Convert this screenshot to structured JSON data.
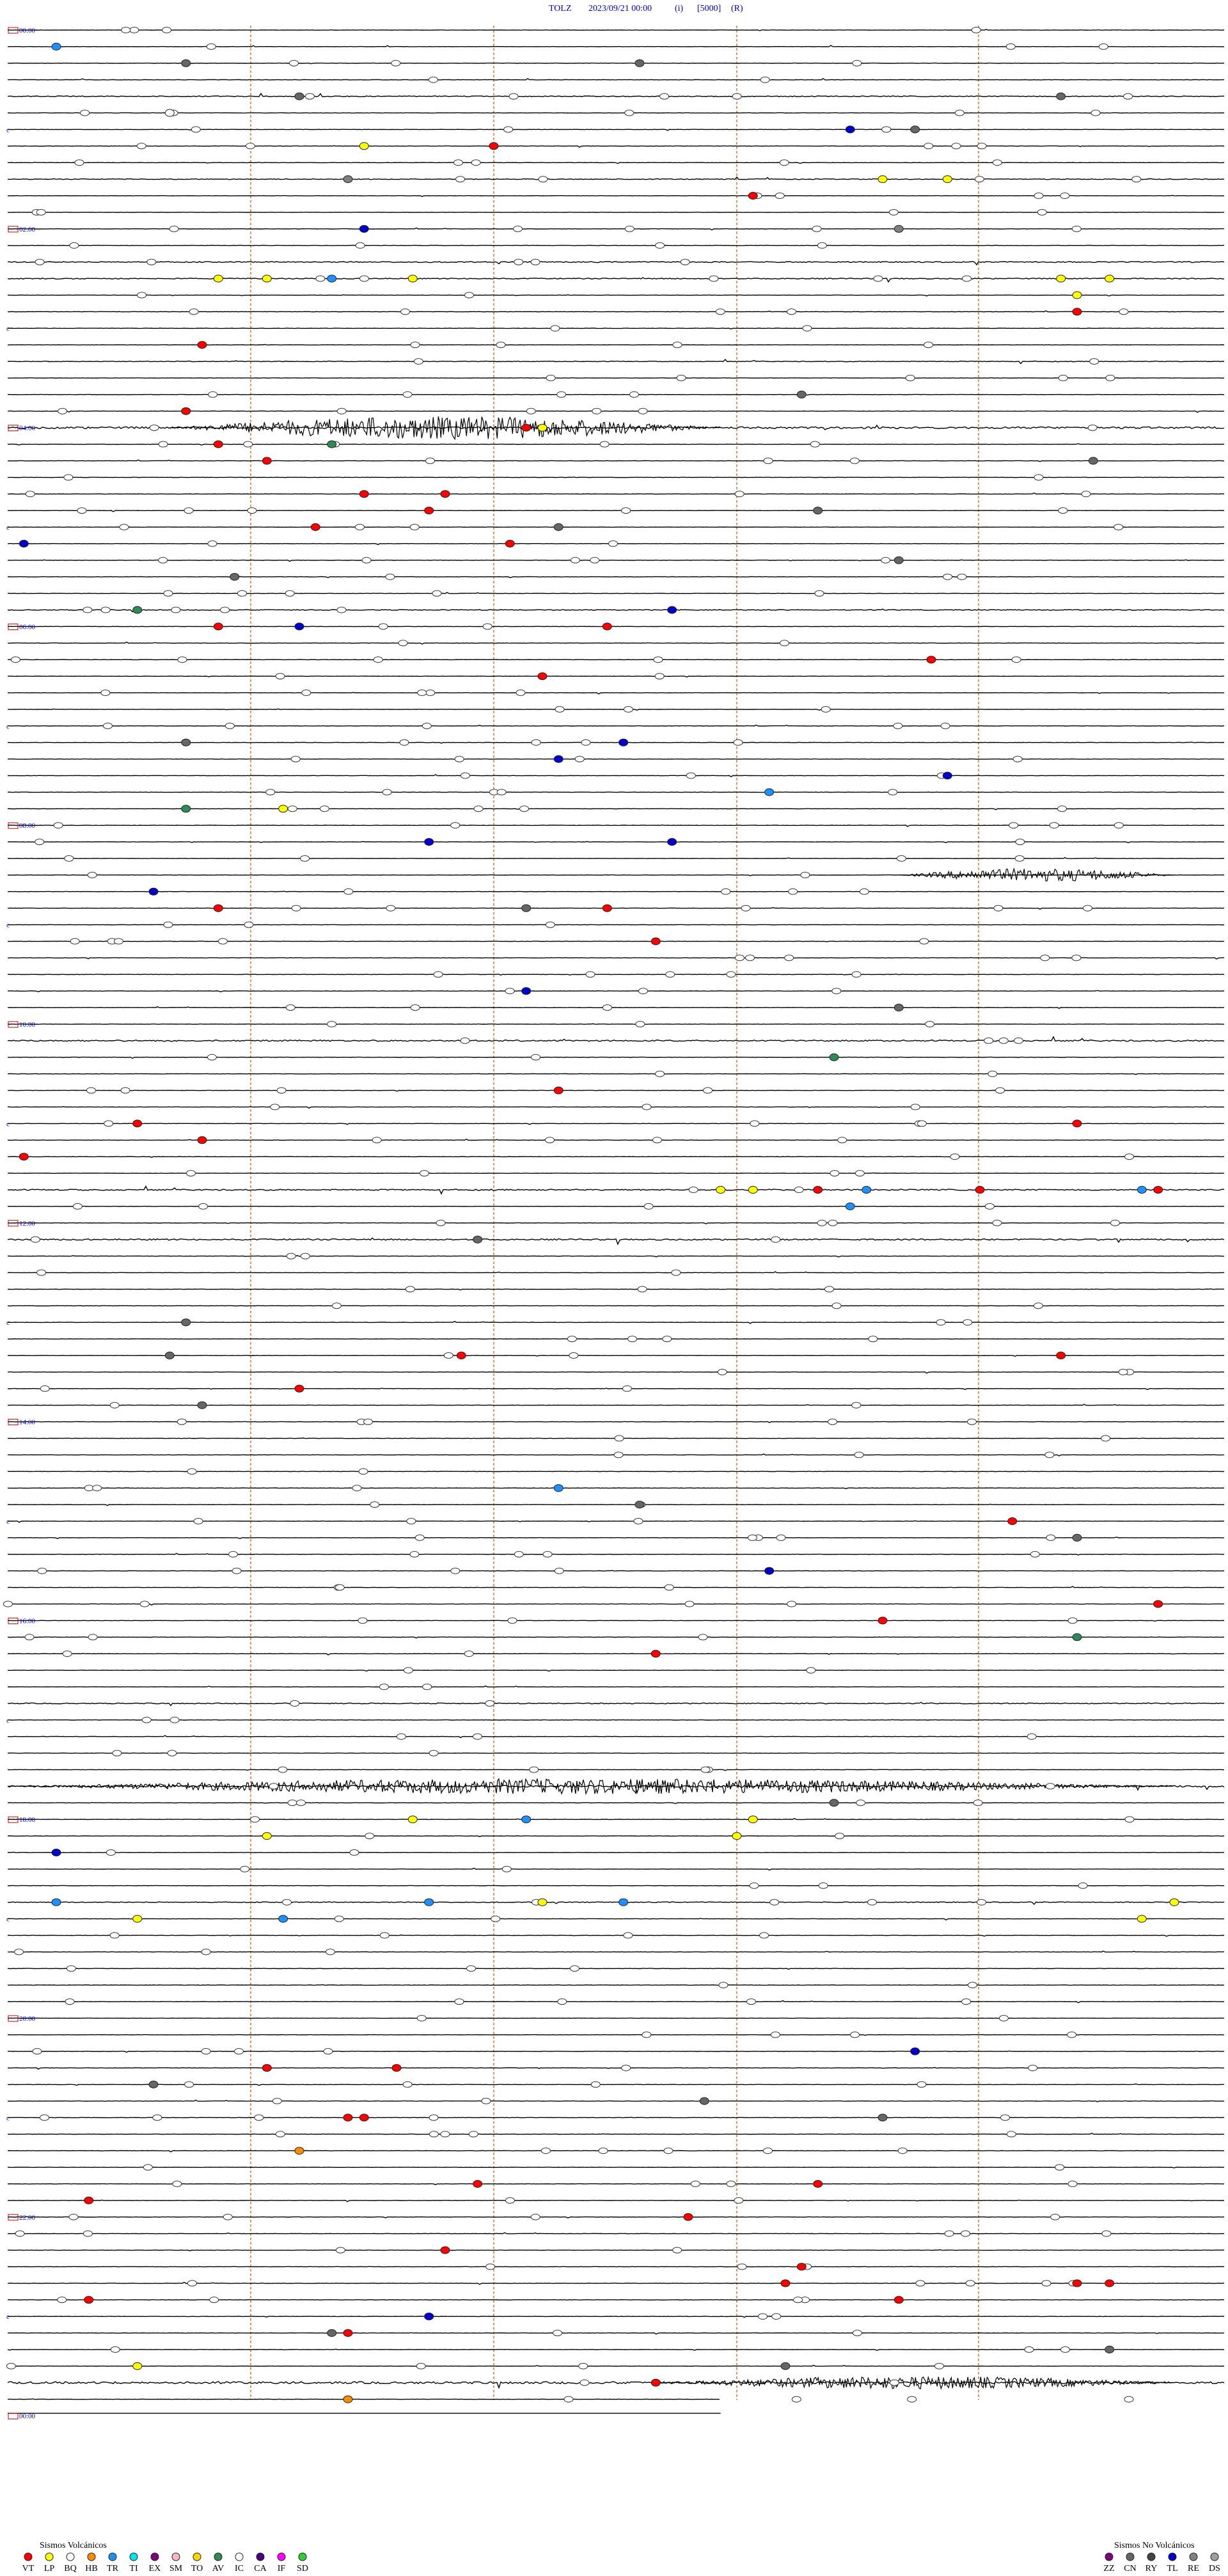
{
  "header": {
    "station": "TOLZ",
    "datetime": "2023/09/21 00:00",
    "field_i": "(i)",
    "scale": "[5000]",
    "field_r": "(R)"
  },
  "colors": {
    "trace": "#000000",
    "hour_label": "#0000cc",
    "minute_grid": "#e8793a",
    "VT": "#ff0000",
    "LP": "#ffff00",
    "BQ": "#ffffff",
    "HB": "#ff8c00",
    "TR": "#1e90ff",
    "TI": "#00e5ee",
    "EX": "#800080",
    "SM": "#ffb6c1",
    "TO": "#ffd700",
    "AV": "#2e8b57",
    "IC": "#ffffff",
    "CA": "#4b0082",
    "IF": "#ff00ff",
    "SD": "#32cd32",
    "ZZ": "#800080",
    "CN": "#666666",
    "RY": "#444444",
    "TL": "#0000cd",
    "RE": "#808080",
    "DS": "#a0a0a0"
  },
  "chart_data": {
    "type": "helicorder",
    "hours": [
      "00:00",
      "02:00",
      "04:00",
      "06:00",
      "08:00",
      "10:00",
      "12:00",
      "14:00",
      "16:00",
      "18:00",
      "20:00",
      "22:00",
      "00:00"
    ],
    "minute_marks": [
      15,
      30,
      45,
      60
    ],
    "grid": true,
    "legend_volcanic_title": "Sismos Volcánicos",
    "legend_volcanic_codes": [
      "VT",
      "LP",
      "BQ",
      "HB",
      "TR",
      "TI",
      "EX",
      "SM",
      "TO",
      "AV",
      "IC",
      "CA",
      "IF",
      "SD"
    ],
    "legend_nonvolcanic_title": "Sismos No Volcánicos",
    "legend_nonvolcanic_codes": [
      "ZZ",
      "CN",
      "RY",
      "TL",
      "RE",
      "DS"
    ],
    "events": [
      {
        "row": 1,
        "min": 3,
        "type": "TR"
      },
      {
        "row": 2,
        "min": 11,
        "type": "CN"
      },
      {
        "row": 2,
        "min": 39,
        "type": "CN"
      },
      {
        "row": 4,
        "min": 18,
        "type": "CN"
      },
      {
        "row": 4,
        "min": 65,
        "type": "CN"
      },
      {
        "row": 5,
        "min": 10,
        "type": "BQ"
      },
      {
        "row": 6,
        "min": 52,
        "type": "TL"
      },
      {
        "row": 6,
        "min": 56,
        "type": "CN"
      },
      {
        "row": 7,
        "min": 22,
        "type": "LP"
      },
      {
        "row": 7,
        "min": 30,
        "type": "VT"
      },
      {
        "row": 9,
        "min": 54,
        "type": "LP"
      },
      {
        "row": 9,
        "min": 58,
        "type": "LP"
      },
      {
        "row": 9,
        "min": 21,
        "type": "RE"
      },
      {
        "row": 10,
        "min": 46,
        "type": "VT"
      },
      {
        "row": 12,
        "min": 55,
        "type": "RE"
      },
      {
        "row": 12,
        "min": 22,
        "type": "TL"
      },
      {
        "row": 15,
        "min": 13,
        "type": "LP"
      },
      {
        "row": 15,
        "min": 16,
        "type": "LP"
      },
      {
        "row": 15,
        "min": 20,
        "type": "TR"
      },
      {
        "row": 15,
        "min": 65,
        "type": "LP"
      },
      {
        "row": 15,
        "min": 68,
        "type": "LP"
      },
      {
        "row": 15,
        "min": 25,
        "type": "LP"
      },
      {
        "row": 16,
        "min": 66,
        "type": "LP"
      },
      {
        "row": 17,
        "min": 66,
        "type": "VT"
      },
      {
        "row": 19,
        "min": 12,
        "type": "VT"
      },
      {
        "row": 22,
        "min": 49,
        "type": "CN"
      },
      {
        "row": 23,
        "min": 11,
        "type": "VT"
      },
      {
        "row": 24,
        "min": 32,
        "type": "VT"
      },
      {
        "row": 24,
        "min": 33,
        "type": "LP"
      },
      {
        "row": 25,
        "min": 20,
        "type": "AV"
      },
      {
        "row": 25,
        "min": 13,
        "type": "VT"
      },
      {
        "row": 26,
        "min": 16,
        "type": "VT"
      },
      {
        "row": 26,
        "min": 67,
        "type": "CN"
      },
      {
        "row": 28,
        "min": 22,
        "type": "VT"
      },
      {
        "row": 28,
        "min": 27,
        "type": "VT"
      },
      {
        "row": 29,
        "min": 50,
        "type": "CN"
      },
      {
        "row": 29,
        "min": 26,
        "type": "VT"
      },
      {
        "row": 30,
        "min": 19,
        "type": "VT"
      },
      {
        "row": 30,
        "min": 34,
        "type": "CN"
      },
      {
        "row": 31,
        "min": 1,
        "type": "TL"
      },
      {
        "row": 31,
        "min": 31,
        "type": "VT"
      },
      {
        "row": 32,
        "min": 55,
        "type": "CN"
      },
      {
        "row": 33,
        "min": 14,
        "type": "CN"
      },
      {
        "row": 35,
        "min": 41,
        "type": "TL"
      },
      {
        "row": 35,
        "min": 8,
        "type": "AV"
      },
      {
        "row": 36,
        "min": 13,
        "type": "VT"
      },
      {
        "row": 36,
        "min": 18,
        "type": "TL"
      },
      {
        "row": 36,
        "min": 37,
        "type": "VT"
      },
      {
        "row": 38,
        "min": 57,
        "type": "VT"
      },
      {
        "row": 39,
        "min": 33,
        "type": "VT"
      },
      {
        "row": 43,
        "min": 11,
        "type": "CN"
      },
      {
        "row": 43,
        "min": 38,
        "type": "TL"
      },
      {
        "row": 44,
        "min": 34,
        "type": "TL"
      },
      {
        "row": 45,
        "min": 58,
        "type": "TL"
      },
      {
        "row": 46,
        "min": 47,
        "type": "TR"
      },
      {
        "row": 47,
        "min": 11,
        "type": "AV"
      },
      {
        "row": 47,
        "min": 17,
        "type": "LP"
      },
      {
        "row": 49,
        "min": 26,
        "type": "TL"
      },
      {
        "row": 49,
        "min": 41,
        "type": "TL"
      },
      {
        "row": 52,
        "min": 9,
        "type": "TL"
      },
      {
        "row": 53,
        "min": 13,
        "type": "VT"
      },
      {
        "row": 53,
        "min": 37,
        "type": "VT"
      },
      {
        "row": 53,
        "min": 32,
        "type": "CN"
      },
      {
        "row": 55,
        "min": 40,
        "type": "VT"
      },
      {
        "row": 58,
        "min": 32,
        "type": "TL"
      },
      {
        "row": 59,
        "min": 55,
        "type": "CN"
      },
      {
        "row": 62,
        "min": 51,
        "type": "AV"
      },
      {
        "row": 64,
        "min": 34,
        "type": "VT"
      },
      {
        "row": 66,
        "min": 8,
        "type": "VT"
      },
      {
        "row": 66,
        "min": 66,
        "type": "VT"
      },
      {
        "row": 67,
        "min": 12,
        "type": "VT"
      },
      {
        "row": 68,
        "min": 1,
        "type": "VT"
      },
      {
        "row": 70,
        "min": 46,
        "type": "LP"
      },
      {
        "row": 70,
        "min": 44,
        "type": "LP"
      },
      {
        "row": 70,
        "min": 50,
        "type": "VT"
      },
      {
        "row": 70,
        "min": 53,
        "type": "TR"
      },
      {
        "row": 70,
        "min": 60,
        "type": "VT"
      },
      {
        "row": 70,
        "min": 71,
        "type": "VT"
      },
      {
        "row": 70,
        "min": 70,
        "type": "TR"
      },
      {
        "row": 71,
        "min": 52,
        "type": "TR"
      },
      {
        "row": 73,
        "min": 29,
        "type": "CN"
      },
      {
        "row": 78,
        "min": 11,
        "type": "CN"
      },
      {
        "row": 80,
        "min": 10,
        "type": "CN"
      },
      {
        "row": 80,
        "min": 28,
        "type": "VT"
      },
      {
        "row": 80,
        "min": 65,
        "type": "VT"
      },
      {
        "row": 82,
        "min": 18,
        "type": "VT"
      },
      {
        "row": 83,
        "min": 12,
        "type": "CN"
      },
      {
        "row": 88,
        "min": 34,
        "type": "TR"
      },
      {
        "row": 89,
        "min": 39,
        "type": "CN"
      },
      {
        "row": 90,
        "min": 62,
        "type": "VT"
      },
      {
        "row": 91,
        "min": 66,
        "type": "CN"
      },
      {
        "row": 93,
        "min": 47,
        "type": "TL"
      },
      {
        "row": 95,
        "min": 71,
        "type": "VT"
      },
      {
        "row": 96,
        "min": 54,
        "type": "VT"
      },
      {
        "row": 97,
        "min": 66,
        "type": "AV"
      },
      {
        "row": 98,
        "min": 40,
        "type": "VT"
      },
      {
        "row": 107,
        "min": 51,
        "type": "CN"
      },
      {
        "row": 108,
        "min": 25,
        "type": "LP"
      },
      {
        "row": 108,
        "min": 32,
        "type": "TR"
      },
      {
        "row": 108,
        "min": 46,
        "type": "LP"
      },
      {
        "row": 109,
        "min": 16,
        "type": "LP"
      },
      {
        "row": 109,
        "min": 45,
        "type": "LP"
      },
      {
        "row": 110,
        "min": 3,
        "type": "TL"
      },
      {
        "row": 113,
        "min": 26,
        "type": "TR"
      },
      {
        "row": 113,
        "min": 33,
        "type": "LP"
      },
      {
        "row": 113,
        "min": 38,
        "type": "TR"
      },
      {
        "row": 113,
        "min": 72,
        "type": "LP"
      },
      {
        "row": 113,
        "min": 3,
        "type": "TR"
      },
      {
        "row": 114,
        "min": 8,
        "type": "LP"
      },
      {
        "row": 114,
        "min": 17,
        "type": "TR"
      },
      {
        "row": 114,
        "min": 70,
        "type": "LP"
      },
      {
        "row": 122,
        "min": 56,
        "type": "TL"
      },
      {
        "row": 123,
        "min": 16,
        "type": "VT"
      },
      {
        "row": 123,
        "min": 24,
        "type": "VT"
      },
      {
        "row": 124,
        "min": 9,
        "type": "CN"
      },
      {
        "row": 125,
        "min": 43,
        "type": "CN"
      },
      {
        "row": 126,
        "min": 21,
        "type": "VT"
      },
      {
        "row": 126,
        "min": 22,
        "type": "VT"
      },
      {
        "row": 126,
        "min": 54,
        "type": "CN"
      },
      {
        "row": 128,
        "min": 18,
        "type": "HB"
      },
      {
        "row": 130,
        "min": 29,
        "type": "VT"
      },
      {
        "row": 130,
        "min": 50,
        "type": "VT"
      },
      {
        "row": 131,
        "min": 5,
        "type": "VT"
      },
      {
        "row": 132,
        "min": 42,
        "type": "VT"
      },
      {
        "row": 134,
        "min": 27,
        "type": "VT"
      },
      {
        "row": 135,
        "min": 49,
        "type": "VT"
      },
      {
        "row": 136,
        "min": 48,
        "type": "VT"
      },
      {
        "row": 136,
        "min": 66,
        "type": "VT"
      },
      {
        "row": 136,
        "min": 68,
        "type": "VT"
      },
      {
        "row": 137,
        "min": 5,
        "type": "VT"
      },
      {
        "row": 137,
        "min": 55,
        "type": "VT"
      },
      {
        "row": 138,
        "min": 26,
        "type": "TL"
      },
      {
        "row": 139,
        "min": 21,
        "type": "VT"
      },
      {
        "row": 139,
        "min": 20,
        "type": "CN"
      },
      {
        "row": 140,
        "min": 68,
        "type": "CN"
      },
      {
        "row": 141,
        "min": 8,
        "type": "LP"
      },
      {
        "row": 141,
        "min": 48,
        "type": "CN"
      },
      {
        "row": 142,
        "min": 40,
        "type": "VT"
      },
      {
        "row": 143,
        "min": 21,
        "type": "HB"
      }
    ]
  },
  "legend": {
    "volcanic_title": "Sismos Volcánicos",
    "nonvolcanic_title": "Sismos No Volcánicos"
  }
}
